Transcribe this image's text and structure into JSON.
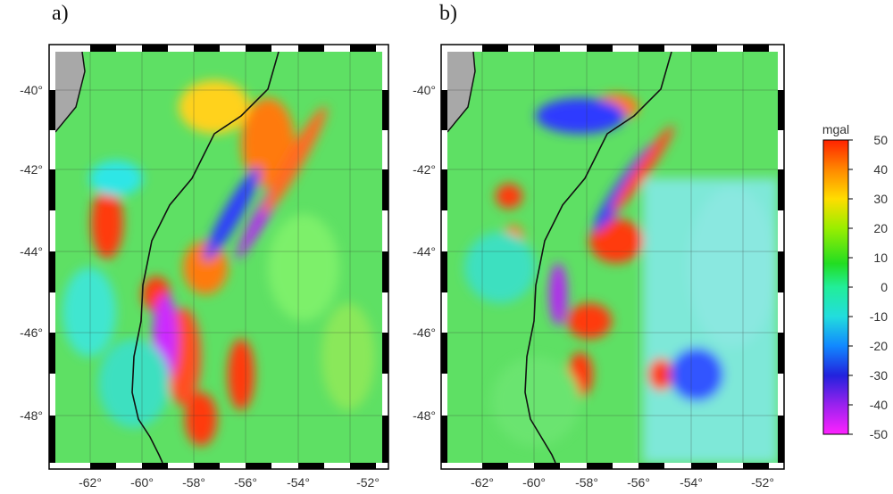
{
  "panels": [
    {
      "label": "a)"
    },
    {
      "label": "b)"
    }
  ],
  "lat_ticks": [
    "-40°",
    "-42°",
    "-44°",
    "-46°",
    "-48°"
  ],
  "lon_ticks": [
    "-62°",
    "-60°",
    "-58°",
    "-56°",
    "-54°",
    "-52°"
  ],
  "colorbar": {
    "unit": "mgal",
    "ticks": [
      "50",
      "40",
      "30",
      "20",
      "10",
      "0",
      "-10",
      "-20",
      "-30",
      "-40",
      "-50"
    ],
    "colors": [
      "#ff2200",
      "#ff8800",
      "#ffdd00",
      "#99ee00",
      "#22dd22",
      "#22ee99",
      "#22dddd",
      "#1188ff",
      "#2222dd",
      "#9922ee",
      "#ff22ff"
    ]
  }
}
